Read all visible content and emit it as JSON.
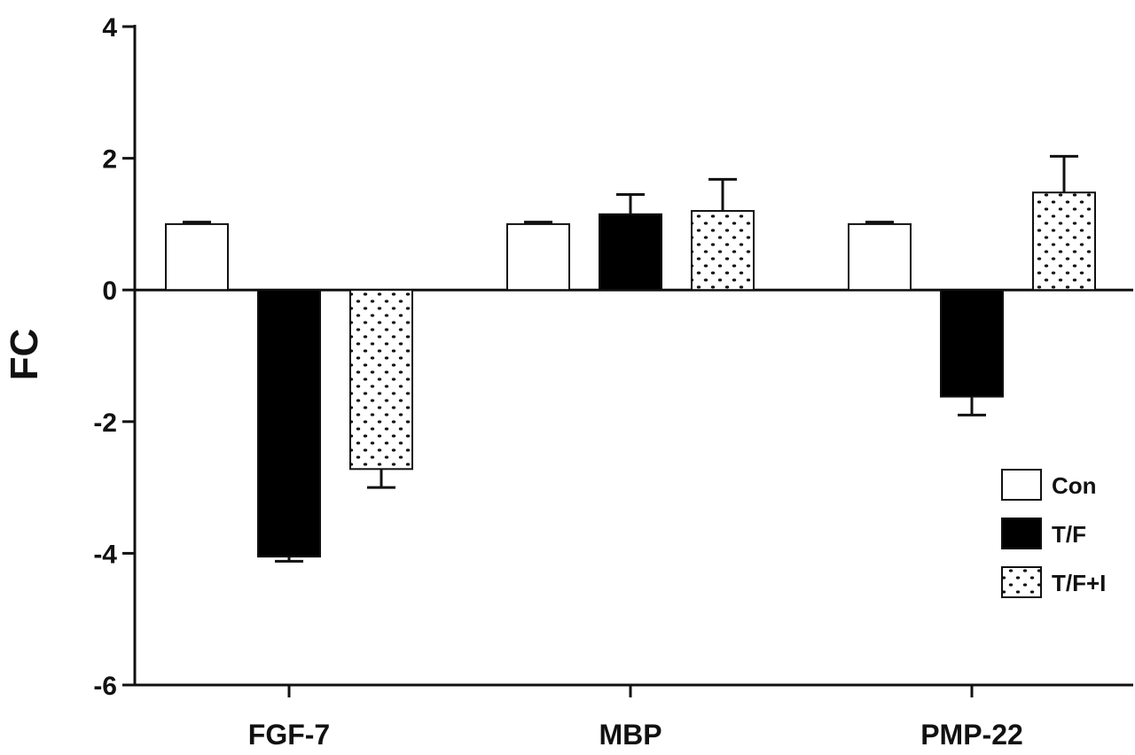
{
  "chart_data": {
    "type": "bar",
    "categories": [
      "FGF-7",
      "MBP",
      "PMP-22"
    ],
    "series": [
      {
        "name": "Con",
        "values": [
          1.0,
          1.0,
          1.0
        ],
        "errors": [
          0.03,
          0.03,
          0.03
        ],
        "fill": "white"
      },
      {
        "name": "T/F",
        "values": [
          -4.05,
          1.15,
          -1.62
        ],
        "errors": [
          0.07,
          0.3,
          0.28
        ],
        "fill": "black"
      },
      {
        "name": "T/F+I",
        "values": [
          -2.72,
          1.2,
          1.48
        ],
        "errors": [
          0.28,
          0.48,
          0.55
        ],
        "fill": "dots"
      }
    ],
    "ylabel": "FC",
    "xlabel": "",
    "ylim": [
      -6,
      4
    ],
    "yticks": [
      4,
      2,
      0,
      -2,
      -4,
      -6
    ],
    "ytick_labels": [
      "4",
      "2",
      "0",
      "-2",
      "-4",
      "-6"
    ],
    "legend_position": "right",
    "grid": false
  }
}
